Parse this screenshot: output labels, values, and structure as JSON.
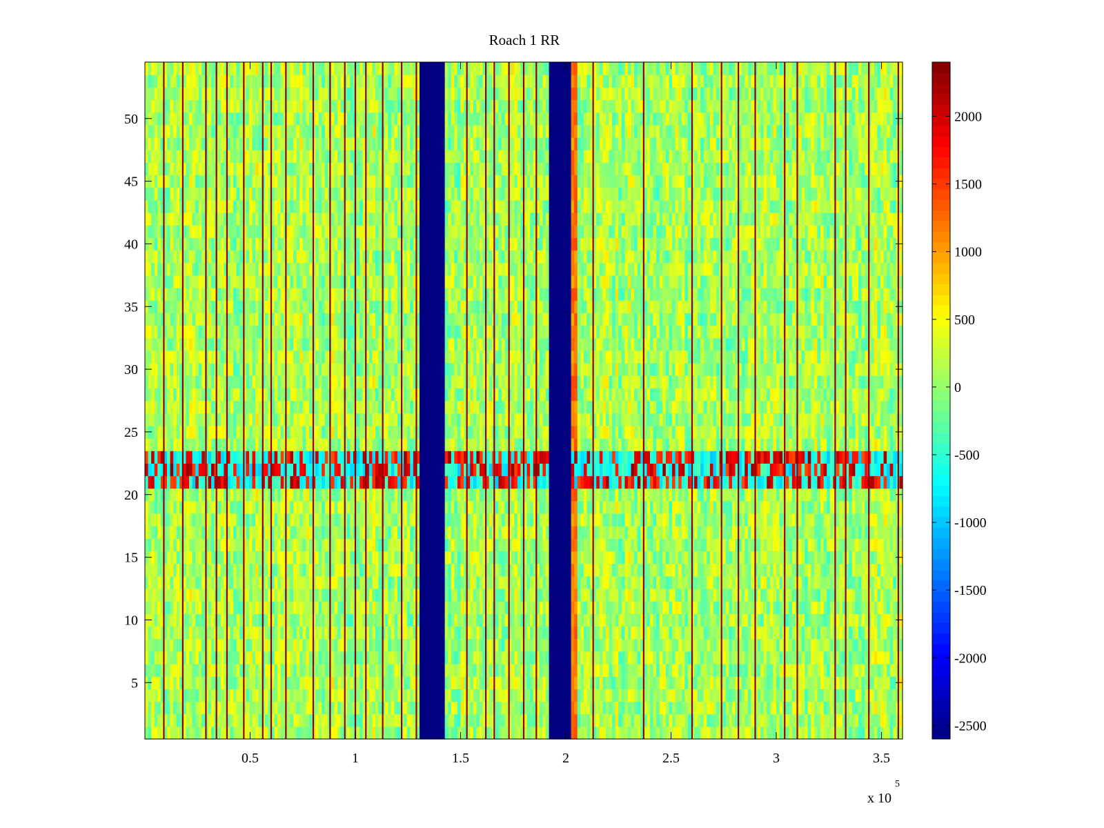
{
  "chart_data": {
    "type": "heatmap",
    "title": "Roach 1 RR",
    "xlabel": "",
    "ylabel": "",
    "x_multiplier_label": "x 10",
    "x_multiplier_exponent": "5",
    "xlim": [
      0,
      3.6
    ],
    "ylim": [
      0.5,
      54.5
    ],
    "x_ticks": [
      {
        "value": 0.5,
        "label": "0.5"
      },
      {
        "value": 1.0,
        "label": "1"
      },
      {
        "value": 1.5,
        "label": "1.5"
      },
      {
        "value": 2.0,
        "label": "2"
      },
      {
        "value": 2.5,
        "label": "2.5"
      },
      {
        "value": 3.0,
        "label": "3"
      },
      {
        "value": 3.5,
        "label": "3.5"
      }
    ],
    "y_ticks": [
      {
        "value": 5,
        "label": "5"
      },
      {
        "value": 10,
        "label": "10"
      },
      {
        "value": 15,
        "label": "15"
      },
      {
        "value": 20,
        "label": "20"
      },
      {
        "value": 25,
        "label": "25"
      },
      {
        "value": 30,
        "label": "30"
      },
      {
        "value": 35,
        "label": "35"
      },
      {
        "value": 40,
        "label": "40"
      },
      {
        "value": 45,
        "label": "45"
      },
      {
        "value": 50,
        "label": "50"
      }
    ],
    "colorbar": {
      "colormap": "jet",
      "range": [
        -2600,
        2400
      ],
      "ticks": [
        {
          "value": 2000,
          "label": "2000"
        },
        {
          "value": 1500,
          "label": "1500"
        },
        {
          "value": 1000,
          "label": "1000"
        },
        {
          "value": 500,
          "label": "500"
        },
        {
          "value": 0,
          "label": "0"
        },
        {
          "value": -500,
          "label": "-500"
        },
        {
          "value": -1000,
          "label": "-1000"
        },
        {
          "value": -1500,
          "label": "-1500"
        },
        {
          "value": -2000,
          "label": "-2000"
        },
        {
          "value": -2500,
          "label": "-2500"
        }
      ]
    },
    "rows": 54,
    "background_value_mean": 100,
    "noise_amplitude": 450,
    "features": [
      {
        "kind": "column_band",
        "x_start": 1.31,
        "x_end": 1.42,
        "value": -2600
      },
      {
        "kind": "column_band",
        "x_start": 1.92,
        "x_end": 2.02,
        "value": -2600
      },
      {
        "kind": "column_band",
        "x_start": 2.02,
        "x_end": 2.06,
        "value": 1200
      },
      {
        "kind": "row_band",
        "y_start": 20.5,
        "y_end": 23.5,
        "value_min": -1000,
        "value_max": 2300
      },
      {
        "kind": "vertical_lines",
        "value": 1800,
        "x_positions": [
          0.09,
          0.18,
          0.29,
          0.34,
          0.39,
          0.47,
          0.56,
          0.6,
          0.67,
          0.8,
          0.88,
          0.95,
          1.0,
          1.05,
          1.13,
          1.22,
          1.29,
          1.53,
          1.62,
          1.66,
          1.73,
          1.8,
          1.86,
          2.13,
          2.37,
          2.6,
          2.74,
          2.82,
          2.9,
          3.04,
          3.1,
          3.28,
          3.33,
          3.44,
          3.58
        ]
      }
    ]
  }
}
